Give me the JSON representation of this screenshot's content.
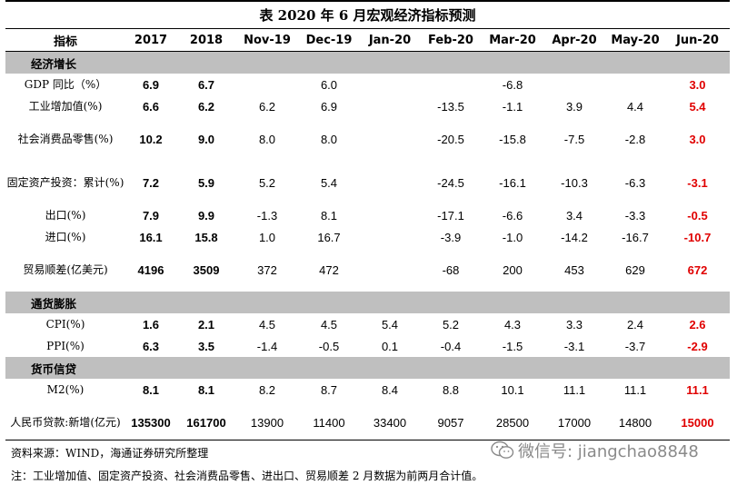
{
  "title": "表 2020 年 6 月宏观经济指标预测",
  "header": [
    "指标",
    "2017",
    "2018",
    "Nov-19",
    "Dec-19",
    "Jan-20",
    "Feb-20",
    "Mar-20",
    "Apr-20",
    "May-20",
    "Jun-20"
  ],
  "sections": [
    {
      "label": "经济增长",
      "rows": [
        {
          "name": "GDP 同比（%）",
          "values": [
            "6.9",
            "6.7",
            "",
            "6.0",
            "",
            "",
            "-6.8",
            "",
            "",
            "3.0"
          ]
        },
        {
          "name": "工业增加值(%)",
          "values": [
            "6.6",
            "6.2",
            "6.2",
            "6.9",
            "",
            "-13.5",
            "-1.1",
            "3.9",
            "4.4",
            "5.4"
          ]
        },
        {
          "name": "社会消费品零售(%)",
          "values": [
            "10.2",
            "9.0",
            "8.0",
            "8.0",
            "",
            "-20.5",
            "-15.8",
            "-7.5",
            "-2.8",
            "3.0"
          ]
        },
        {
          "name": "固定资产投资：累计(%)",
          "values": [
            "7.2",
            "5.9",
            "5.2",
            "5.4",
            "",
            "-24.5",
            "-16.1",
            "-10.3",
            "-6.3",
            "-3.1"
          ]
        },
        {
          "name": "出口(%)",
          "values": [
            "7.9",
            "9.9",
            "-1.3",
            "8.1",
            "",
            "-17.1",
            "-6.6",
            "3.4",
            "-3.3",
            "-0.5"
          ]
        },
        {
          "name": "进口(%)",
          "values": [
            "16.1",
            "15.8",
            "1.0",
            "16.7",
            "",
            "-3.9",
            "-1.0",
            "-14.2",
            "-16.7",
            "-10.7"
          ]
        },
        {
          "name": "贸易顺差(亿美元)",
          "values": [
            "4196",
            "3509",
            "372",
            "472",
            "",
            "-68",
            "200",
            "453",
            "629",
            "672"
          ]
        }
      ]
    },
    {
      "label": "通货膨胀",
      "rows": [
        {
          "name": "CPI(%)",
          "values": [
            "1.6",
            "2.1",
            "4.5",
            "4.5",
            "5.4",
            "5.2",
            "4.3",
            "3.3",
            "2.4",
            "2.6"
          ]
        },
        {
          "name": "PPI(%)",
          "values": [
            "6.3",
            "3.5",
            "-1.4",
            "-0.5",
            "0.1",
            "-0.4",
            "-1.5",
            "-3.1",
            "-3.7",
            "-2.9"
          ]
        }
      ]
    },
    {
      "label": "货币信贷",
      "rows": [
        {
          "name": "M2(%)",
          "values": [
            "8.1",
            "8.1",
            "8.2",
            "8.7",
            "8.4",
            "8.8",
            "10.1",
            "11.1",
            "11.1",
            "11.1"
          ]
        },
        {
          "name": "人民币贷款:新增(亿元)",
          "values": [
            "135300",
            "161700",
            "13900",
            "11400",
            "33400",
            "9057",
            "28500",
            "17000",
            "14800",
            "15000"
          ]
        }
      ]
    }
  ],
  "source": "资料来源：WIND，海通证券研究所整理",
  "note": "注：工业增加值、固定资产投资、社会消费品零售、进出口、贸易顺差 2 月数据为前两月合计值。",
  "watermark": "微信号: jiangchao8848",
  "colors": {
    "section_bg": "#bfbfbf",
    "forecast": "#e00000"
  }
}
